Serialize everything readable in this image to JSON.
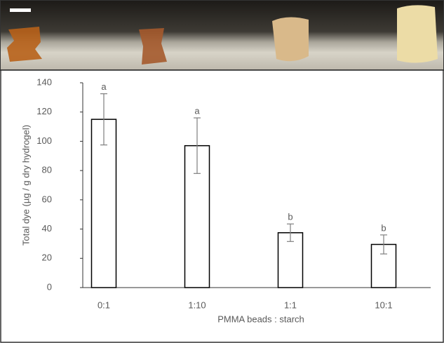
{
  "chart_data": {
    "type": "bar",
    "x_label": "PMMA beads : starch",
    "y_label": "Total dye (µg / g dry hydrogel)",
    "categories": [
      "0:1",
      "1:10",
      "1:1",
      "10:1"
    ],
    "values": [
      115,
      97,
      37.5,
      29.5
    ],
    "errors": [
      17.5,
      19,
      6,
      6.5
    ],
    "annotations": [
      "a",
      "a",
      "b",
      "b"
    ],
    "color": "#ffffff",
    "ylim": [
      0,
      140
    ],
    "yticks": [
      0,
      20,
      40,
      60,
      80,
      100,
      120,
      140
    ],
    "grid": false
  }
}
